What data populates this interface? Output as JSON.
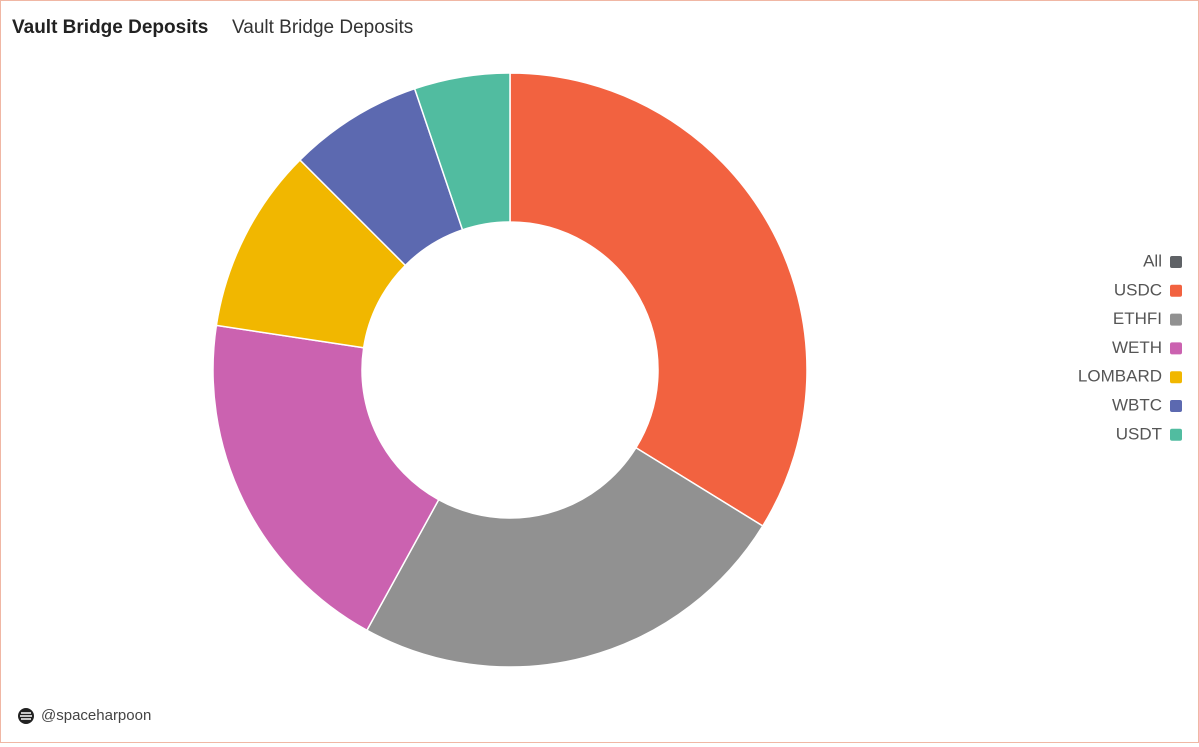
{
  "chart_data": {
    "type": "donut",
    "title": "Vault Bridge Deposits",
    "subtitle": "Vault Bridge Deposits",
    "categories": [
      "All",
      "USDC",
      "ETHFI",
      "WETH",
      "LOMBARD",
      "WBTC",
      "USDT"
    ],
    "values": [
      null,
      33.8,
      24.2,
      19.4,
      10.1,
      7.3,
      5.2
    ],
    "colors": [
      "#5f6266",
      "#f26240",
      "#919191",
      "#cb62b0",
      "#f1b700",
      "#5c69b0",
      "#51bca0"
    ],
    "legend": "right",
    "credit": "@spaceharpoon"
  }
}
